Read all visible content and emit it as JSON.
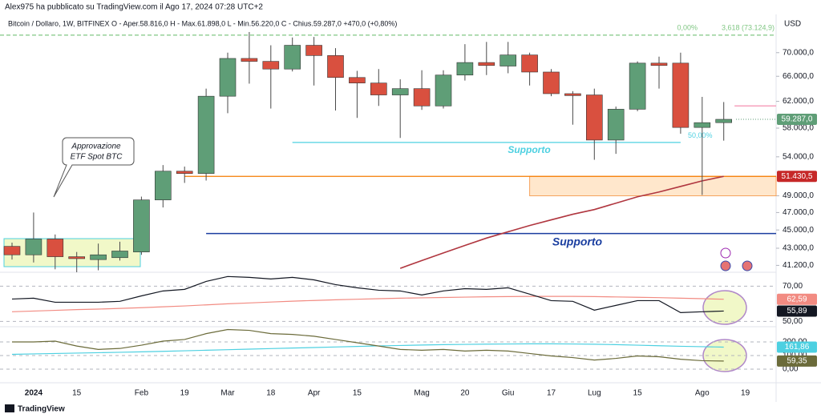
{
  "header": {
    "author": "Alex975 ha pubblicato su TradingView.com il Ago 17, 2024 07:28 UTC+2",
    "legend": "Bitcoin / Dollaro, 1W, BITFINEX  O - Aper.58.816,0  H - Max.61.898,0  L - Min.56.220,0  C - Chius.59.287,0  +470,0 (+0,80%)"
  },
  "currency": "USD",
  "footer": "TradingView",
  "chart_data": [
    {
      "type": "candlestick",
      "categories": [
        null,
        "2024",
        null,
        "15",
        null,
        null,
        "Feb",
        null,
        "19",
        null,
        "Mar",
        null,
        "18",
        null,
        "Apr",
        null,
        "15",
        null,
        null,
        "Mag",
        null,
        "20",
        null,
        "Giu",
        null,
        "17",
        null,
        "Lug",
        null,
        "15",
        null,
        null,
        "Ago",
        null,
        "19"
      ],
      "open": [
        43200,
        42300,
        44000,
        42100,
        41800,
        42000,
        42600,
        48500,
        52100,
        51800,
        62800,
        69000,
        68500,
        67200,
        71300,
        69500,
        65800,
        64900,
        63000,
        64000,
        61300,
        66200,
        68300,
        67700,
        69600,
        66700,
        63200,
        63000,
        56300,
        60800,
        68200,
        68200,
        58100,
        58800,
        null
      ],
      "high": [
        43600,
        47000,
        44500,
        42600,
        43500,
        43700,
        48900,
        52900,
        52700,
        64000,
        70000,
        73700,
        71300,
        72700,
        72800,
        70800,
        66900,
        67200,
        65500,
        67000,
        67000,
        71500,
        71900,
        71900,
        70000,
        67200,
        63600,
        64000,
        61200,
        68500,
        69300,
        70000,
        62700,
        61898,
        null
      ],
      "low": [
        41800,
        41500,
        40800,
        40500,
        40700,
        41700,
        42300,
        47600,
        50600,
        50900,
        60200,
        64800,
        60900,
        66800,
        64500,
        60600,
        59500,
        61300,
        56600,
        60700,
        60900,
        65300,
        66200,
        66500,
        64500,
        62800,
        58500,
        53600,
        54400,
        60500,
        64000,
        57200,
        49100,
        56220,
        null
      ],
      "close": [
        42300,
        44000,
        42100,
        41900,
        42300,
        42700,
        48500,
        52100,
        51800,
        62800,
        69000,
        68500,
        67200,
        71300,
        69500,
        65800,
        64900,
        63000,
        64000,
        61300,
        66200,
        68300,
        67800,
        69600,
        66700,
        63200,
        62900,
        56300,
        60800,
        68200,
        67800,
        58100,
        58800,
        59287,
        null
      ],
      "up_color": "#5f9e77",
      "down_color": "#d9503f",
      "log_scale": true,
      "ylim": [
        40500,
        77000
      ],
      "yticks": [
        {
          "value": 70000,
          "label": "70.000,0"
        },
        {
          "value": 66000,
          "label": "66.000,0"
        },
        {
          "value": 62000,
          "label": "62.000,0"
        },
        {
          "value": 58000,
          "label": "58.000,0"
        },
        {
          "value": 54000,
          "label": "54.000,0"
        },
        {
          "value": 49000,
          "label": "49.000,0"
        },
        {
          "value": 47000,
          "label": "47.000,0"
        },
        {
          "value": 45000,
          "label": "45.000,0"
        },
        {
          "value": 43000,
          "label": "43.000,0"
        },
        {
          "value": 41200,
          "label": "41.200,0"
        }
      ],
      "last_price": {
        "value": 59287,
        "label": "59.287,0",
        "color": "#5f9e77"
      },
      "ma": {
        "color": "#b0363f",
        "values": [
          null,
          null,
          null,
          null,
          null,
          null,
          null,
          null,
          null,
          null,
          null,
          null,
          null,
          null,
          null,
          null,
          null,
          null,
          40900,
          41700,
          42500,
          43300,
          44100,
          44800,
          45500,
          46150,
          46800,
          47350,
          48110,
          48880,
          49470,
          50160,
          50860,
          51430,
          null
        ]
      },
      "levels": [
        {
          "value": 73124.9,
          "label": "3,618 (73.124,9)",
          "pct": "0,00%",
          "color": "#81c784"
        },
        {
          "value": 55970,
          "label": "Supporto",
          "pct": "50,00%",
          "color": "#4dd0e1"
        },
        {
          "value": 51430.5,
          "label": "51.430,5",
          "color": "#f57c00"
        },
        {
          "value": 44600,
          "label": "Supporto",
          "color": "#1a3ea0"
        },
        {
          "value": 61300,
          "color": "#f48fb1"
        }
      ],
      "zone": {
        "top": 51430.5,
        "bottom": 49000,
        "color": "#ffe7cc"
      },
      "annotation": [
        "Approvazione",
        "ETF Spot BTC"
      ]
    },
    {
      "type": "line",
      "ylim": [
        47,
        77
      ],
      "yticks": [
        {
          "value": 70,
          "label": "70,00"
        },
        {
          "value": 50,
          "label": "50,00"
        }
      ],
      "series": [
        {
          "color": "#f28b82",
          "last_label": "62,59",
          "values": [
            55.5,
            55.9,
            56.3,
            56.7,
            57.0,
            57.4,
            57.8,
            58.3,
            58.8,
            59.4,
            60.0,
            60.5,
            61.0,
            61.5,
            61.9,
            62.3,
            62.6,
            62.9,
            63.2,
            63.4,
            63.6,
            63.8,
            64.0,
            64.1,
            64.2,
            64.2,
            64.2,
            64.1,
            63.9,
            63.7,
            63.5,
            63.2,
            62.9,
            62.59,
            null
          ]
        },
        {
          "color": "#131722",
          "last_label": "55,89",
          "values": [
            62.7,
            63.2,
            60.9,
            60.9,
            60.9,
            61.4,
            64.5,
            67.3,
            68.2,
            72.7,
            75.5,
            75.0,
            74.1,
            75.0,
            73.6,
            70.9,
            69.1,
            67.7,
            67.3,
            65.0,
            67.3,
            68.6,
            68.2,
            69.1,
            65.5,
            61.8,
            61.4,
            56.4,
            59.1,
            61.8,
            61.8,
            55.0,
            55.5,
            55.89,
            null
          ]
        }
      ]
    },
    {
      "type": "line",
      "ylim": [
        -100,
        300
      ],
      "yticks": [
        {
          "value": 200,
          "label": "200,00"
        },
        {
          "value": 100,
          "label": "100,00"
        },
        {
          "value": 0,
          "label": "0,00"
        }
      ],
      "series": [
        {
          "color": "#4dd0e1",
          "last_label": "161,86",
          "values": [
            109,
            112,
            115,
            118,
            121,
            124,
            127,
            131,
            135,
            139,
            143,
            147,
            151,
            155,
            159,
            163,
            167,
            171,
            174,
            177,
            180,
            182,
            184,
            185,
            186,
            186,
            185,
            183,
            180,
            176,
            172,
            168,
            165,
            161.86,
            null
          ]
        },
        {
          "color": "#6b6b3a",
          "last_label": "59,35",
          "values": [
            200,
            200,
            206,
            170,
            145,
            152,
            176,
            206,
            218,
            261,
            291,
            285,
            261,
            255,
            242,
            218,
            194,
            170,
            145,
            139,
            145,
            133,
            139,
            133,
            115,
            97,
            85,
            67,
            79,
            97,
            91,
            73,
            62,
            59.35,
            null
          ]
        }
      ]
    }
  ]
}
